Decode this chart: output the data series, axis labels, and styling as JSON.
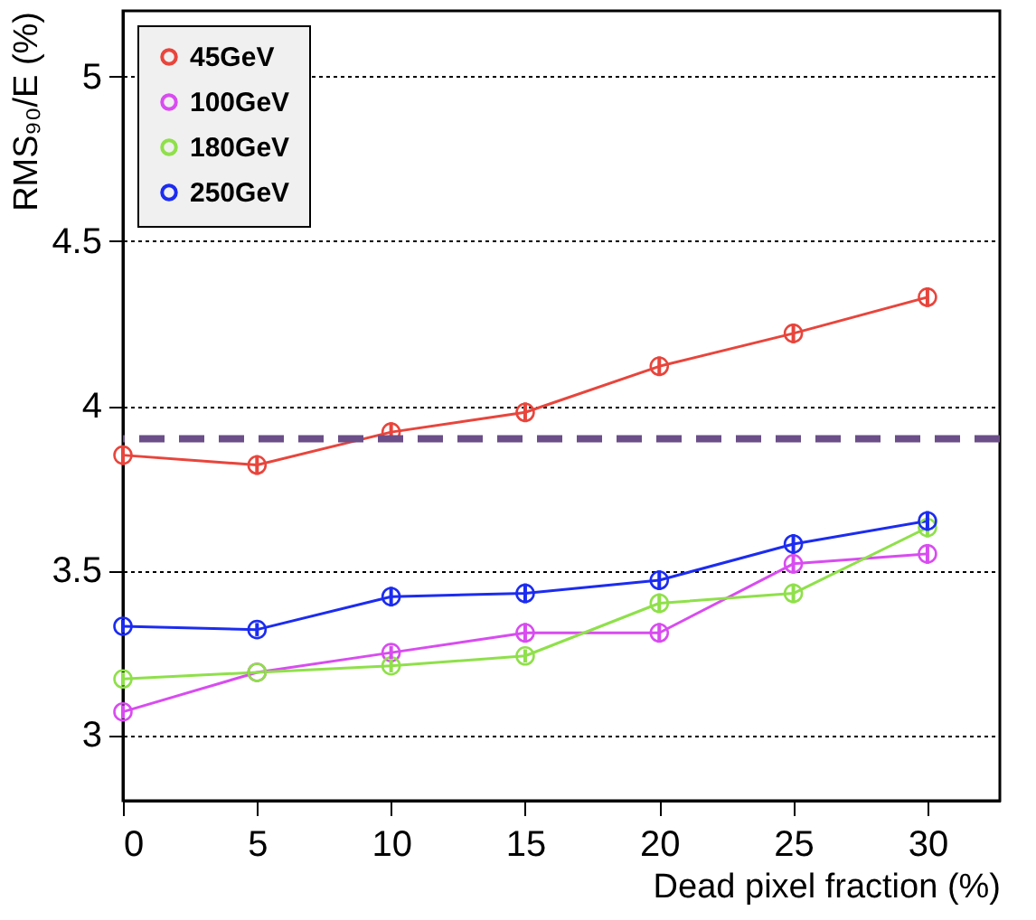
{
  "chart_data": {
    "type": "line",
    "xlabel": "Dead pixel fraction (%)",
    "ylabel": "RMS₉₀/E (%)",
    "x": [
      0,
      5,
      10,
      15,
      20,
      25,
      30
    ],
    "series": [
      {
        "name": "45GeV",
        "color": "#e8453c",
        "values": [
          3.85,
          3.82,
          3.92,
          3.98,
          4.12,
          4.22,
          4.33
        ],
        "errors": [
          0.03,
          0.03,
          0.03,
          0.03,
          0.03,
          0.03,
          0.03
        ]
      },
      {
        "name": "100GeV",
        "color": "#d84cf0",
        "values": [
          3.07,
          3.19,
          3.25,
          3.31,
          3.31,
          3.52,
          3.55
        ],
        "errors": [
          0.02,
          null,
          0.02,
          0.03,
          0.03,
          0.03,
          0.03
        ]
      },
      {
        "name": "180GeV",
        "color": "#8fe04a",
        "values": [
          3.17,
          3.19,
          3.21,
          3.24,
          3.4,
          3.43,
          3.63
        ],
        "errors": [
          0.02,
          null,
          0.02,
          0.02,
          0.03,
          0.03,
          0.03
        ]
      },
      {
        "name": "250GeV",
        "color": "#1c2cf0",
        "values": [
          3.33,
          3.32,
          3.42,
          3.43,
          3.47,
          3.58,
          3.65
        ],
        "errors": [
          0.02,
          0.02,
          0.03,
          0.03,
          0.03,
          0.03,
          0.03
        ]
      }
    ],
    "xlim": [
      0,
      32.7
    ],
    "xticks": [
      0,
      5,
      10,
      15,
      20,
      25,
      30
    ],
    "ylim": [
      2.8,
      5.2
    ],
    "yticks": [
      3,
      3.5,
      4,
      4.5,
      5
    ],
    "ref_lines": [
      {
        "axis": "y",
        "value": 3.9,
        "color": "#6b4f88",
        "line_style": "dashed"
      }
    ],
    "grid": "y",
    "legend": "top left",
    "marker": "circle",
    "line_style": "solid"
  }
}
